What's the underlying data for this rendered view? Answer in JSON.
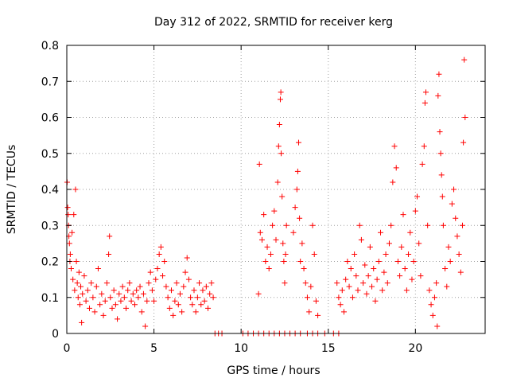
{
  "chart_data": {
    "type": "scatter",
    "title": "Day 312 of 2022, SRMTID for receiver kerg",
    "xlabel": "GPS time / hours",
    "ylabel": "SRMTID / TECUs",
    "xlim": [
      0,
      24
    ],
    "ylim": [
      0,
      0.8
    ],
    "x_ticks": [
      0,
      5,
      10,
      15,
      20
    ],
    "y_ticks": [
      0,
      0.1,
      0.2,
      0.3,
      0.4,
      0.5,
      0.6,
      0.7,
      0.8
    ],
    "x_tick_labels": [
      "0",
      "5",
      "10",
      "15",
      "20"
    ],
    "y_tick_labels": [
      "0",
      "0.1",
      "0.2",
      "0.3",
      "0.4",
      "0.5",
      "0.6",
      "0.7",
      "0.8"
    ],
    "grid": true,
    "marker": "plus",
    "series": [
      {
        "name": "SRMTID",
        "color": "#ff0000",
        "points": [
          [
            0.02,
            0.42
          ],
          [
            0.05,
            0.35
          ],
          [
            0.08,
            0.33
          ],
          [
            0.1,
            0.3
          ],
          [
            0.12,
            0.27
          ],
          [
            0.15,
            0.25
          ],
          [
            0.18,
            0.2
          ],
          [
            0.2,
            0.22
          ],
          [
            0.25,
            0.18
          ],
          [
            0.3,
            0.28
          ],
          [
            0.35,
            0.15
          ],
          [
            0.4,
            0.33
          ],
          [
            0.45,
            0.12
          ],
          [
            0.5,
            0.4
          ],
          [
            0.55,
            0.2
          ],
          [
            0.6,
            0.14
          ],
          [
            0.65,
            0.1
          ],
          [
            0.7,
            0.17
          ],
          [
            0.75,
            0.08
          ],
          [
            0.8,
            0.13
          ],
          [
            0.85,
            0.03
          ],
          [
            0.9,
            0.11
          ],
          [
            1.0,
            0.16
          ],
          [
            1.1,
            0.09
          ],
          [
            1.2,
            0.12
          ],
          [
            1.3,
            0.07
          ],
          [
            1.4,
            0.14
          ],
          [
            1.5,
            0.1
          ],
          [
            1.6,
            0.06
          ],
          [
            1.7,
            0.13
          ],
          [
            1.8,
            0.18
          ],
          [
            1.9,
            0.08
          ],
          [
            2.0,
            0.11
          ],
          [
            2.1,
            0.05
          ],
          [
            2.2,
            0.09
          ],
          [
            2.3,
            0.14
          ],
          [
            2.4,
            0.22
          ],
          [
            2.45,
            0.27
          ],
          [
            2.5,
            0.1
          ],
          [
            2.6,
            0.07
          ],
          [
            2.7,
            0.12
          ],
          [
            2.8,
            0.08
          ],
          [
            2.9,
            0.04
          ],
          [
            3.0,
            0.11
          ],
          [
            3.1,
            0.09
          ],
          [
            3.2,
            0.13
          ],
          [
            3.3,
            0.1
          ],
          [
            3.4,
            0.07
          ],
          [
            3.5,
            0.12
          ],
          [
            3.6,
            0.14
          ],
          [
            3.7,
            0.09
          ],
          [
            3.8,
            0.11
          ],
          [
            3.9,
            0.08
          ],
          [
            4.0,
            0.12
          ],
          [
            4.1,
            0.1
          ],
          [
            4.2,
            0.13
          ],
          [
            4.3,
            0.06
          ],
          [
            4.4,
            0.11
          ],
          [
            4.5,
            0.02
          ],
          [
            4.6,
            0.09
          ],
          [
            4.7,
            0.14
          ],
          [
            4.8,
            0.17
          ],
          [
            4.9,
            0.12
          ],
          [
            5.0,
            0.09
          ],
          [
            5.1,
            0.15
          ],
          [
            5.2,
            0.18
          ],
          [
            5.3,
            0.22
          ],
          [
            5.4,
            0.24
          ],
          [
            5.5,
            0.16
          ],
          [
            5.6,
            0.2
          ],
          [
            5.7,
            0.13
          ],
          [
            5.8,
            0.1
          ],
          [
            5.9,
            0.07
          ],
          [
            6.0,
            0.12
          ],
          [
            6.1,
            0.05
          ],
          [
            6.2,
            0.09
          ],
          [
            6.3,
            0.14
          ],
          [
            6.4,
            0.08
          ],
          [
            6.5,
            0.11
          ],
          [
            6.6,
            0.06
          ],
          [
            6.7,
            0.13
          ],
          [
            6.8,
            0.17
          ],
          [
            6.9,
            0.21
          ],
          [
            7.0,
            0.15
          ],
          [
            7.1,
            0.1
          ],
          [
            7.2,
            0.08
          ],
          [
            7.3,
            0.12
          ],
          [
            7.4,
            0.06
          ],
          [
            7.5,
            0.1
          ],
          [
            7.6,
            0.14
          ],
          [
            7.7,
            0.08
          ],
          [
            7.8,
            0.12
          ],
          [
            7.9,
            0.09
          ],
          [
            8.0,
            0.13
          ],
          [
            8.1,
            0.07
          ],
          [
            8.2,
            0.11
          ],
          [
            8.3,
            0.14
          ],
          [
            8.4,
            0.1
          ],
          [
            8.5,
            0.0
          ],
          [
            8.7,
            0.0
          ],
          [
            8.9,
            0.0
          ],
          [
            10.1,
            0.0
          ],
          [
            10.4,
            0.0
          ],
          [
            10.7,
            0.0
          ],
          [
            11.0,
            0.0
          ],
          [
            11.3,
            0.0
          ],
          [
            11.6,
            0.0
          ],
          [
            11.9,
            0.0
          ],
          [
            12.2,
            0.0
          ],
          [
            12.5,
            0.0
          ],
          [
            12.8,
            0.0
          ],
          [
            13.1,
            0.0
          ],
          [
            13.4,
            0.0
          ],
          [
            13.8,
            0.0
          ],
          [
            14.1,
            0.0
          ],
          [
            14.4,
            0.0
          ],
          [
            14.8,
            0.0
          ],
          [
            15.3,
            0.0
          ],
          [
            15.6,
            0.0
          ],
          [
            11.0,
            0.11
          ],
          [
            11.05,
            0.47
          ],
          [
            11.1,
            0.28
          ],
          [
            11.2,
            0.26
          ],
          [
            11.3,
            0.33
          ],
          [
            11.4,
            0.2
          ],
          [
            11.5,
            0.24
          ],
          [
            11.6,
            0.18
          ],
          [
            11.7,
            0.22
          ],
          [
            11.8,
            0.3
          ],
          [
            11.9,
            0.34
          ],
          [
            12.0,
            0.26
          ],
          [
            12.1,
            0.42
          ],
          [
            12.15,
            0.52
          ],
          [
            12.2,
            0.58
          ],
          [
            12.25,
            0.65
          ],
          [
            12.28,
            0.67
          ],
          [
            12.3,
            0.5
          ],
          [
            12.35,
            0.38
          ],
          [
            12.4,
            0.25
          ],
          [
            12.45,
            0.2
          ],
          [
            12.5,
            0.14
          ],
          [
            12.55,
            0.22
          ],
          [
            12.6,
            0.3
          ],
          [
            13.0,
            0.28
          ],
          [
            13.1,
            0.35
          ],
          [
            13.2,
            0.4
          ],
          [
            13.25,
            0.45
          ],
          [
            13.3,
            0.53
          ],
          [
            13.35,
            0.32
          ],
          [
            13.4,
            0.2
          ],
          [
            13.5,
            0.25
          ],
          [
            13.6,
            0.18
          ],
          [
            13.7,
            0.14
          ],
          [
            13.8,
            0.1
          ],
          [
            13.9,
            0.06
          ],
          [
            14.0,
            0.13
          ],
          [
            14.1,
            0.3
          ],
          [
            14.2,
            0.22
          ],
          [
            14.3,
            0.09
          ],
          [
            14.4,
            0.05
          ],
          [
            15.5,
            0.14
          ],
          [
            15.6,
            0.1
          ],
          [
            15.7,
            0.08
          ],
          [
            15.8,
            0.12
          ],
          [
            15.9,
            0.06
          ],
          [
            16.0,
            0.15
          ],
          [
            16.1,
            0.2
          ],
          [
            16.2,
            0.13
          ],
          [
            16.3,
            0.18
          ],
          [
            16.4,
            0.1
          ],
          [
            16.5,
            0.22
          ],
          [
            16.6,
            0.16
          ],
          [
            16.7,
            0.12
          ],
          [
            16.8,
            0.3
          ],
          [
            16.9,
            0.26
          ],
          [
            17.0,
            0.14
          ],
          [
            17.1,
            0.19
          ],
          [
            17.2,
            0.11
          ],
          [
            17.3,
            0.16
          ],
          [
            17.4,
            0.24
          ],
          [
            17.5,
            0.13
          ],
          [
            17.6,
            0.18
          ],
          [
            17.7,
            0.09
          ],
          [
            17.8,
            0.15
          ],
          [
            17.9,
            0.2
          ],
          [
            18.0,
            0.28
          ],
          [
            18.1,
            0.12
          ],
          [
            18.2,
            0.17
          ],
          [
            18.3,
            0.22
          ],
          [
            18.4,
            0.14
          ],
          [
            18.5,
            0.25
          ],
          [
            18.6,
            0.3
          ],
          [
            18.7,
            0.42
          ],
          [
            18.8,
            0.52
          ],
          [
            18.9,
            0.46
          ],
          [
            19.0,
            0.2
          ],
          [
            19.1,
            0.16
          ],
          [
            19.2,
            0.24
          ],
          [
            19.3,
            0.33
          ],
          [
            19.4,
            0.18
          ],
          [
            19.5,
            0.12
          ],
          [
            19.6,
            0.22
          ],
          [
            19.7,
            0.28
          ],
          [
            19.8,
            0.15
          ],
          [
            19.9,
            0.2
          ],
          [
            20.0,
            0.34
          ],
          [
            20.1,
            0.38
          ],
          [
            20.2,
            0.25
          ],
          [
            20.3,
            0.16
          ],
          [
            20.4,
            0.47
          ],
          [
            20.5,
            0.52
          ],
          [
            20.55,
            0.64
          ],
          [
            20.6,
            0.67
          ],
          [
            20.7,
            0.3
          ],
          [
            20.8,
            0.12
          ],
          [
            20.9,
            0.08
          ],
          [
            21.0,
            0.05
          ],
          [
            21.1,
            0.1
          ],
          [
            21.2,
            0.14
          ],
          [
            21.25,
            0.02
          ],
          [
            21.3,
            0.66
          ],
          [
            21.35,
            0.72
          ],
          [
            21.4,
            0.56
          ],
          [
            21.45,
            0.5
          ],
          [
            21.5,
            0.44
          ],
          [
            21.55,
            0.38
          ],
          [
            21.6,
            0.3
          ],
          [
            21.7,
            0.18
          ],
          [
            21.8,
            0.13
          ],
          [
            21.9,
            0.24
          ],
          [
            22.0,
            0.2
          ],
          [
            22.1,
            0.36
          ],
          [
            22.2,
            0.4
          ],
          [
            22.3,
            0.32
          ],
          [
            22.4,
            0.27
          ],
          [
            22.5,
            0.22
          ],
          [
            22.6,
            0.17
          ],
          [
            22.7,
            0.3
          ],
          [
            22.75,
            0.53
          ],
          [
            22.8,
            0.76
          ],
          [
            22.85,
            0.6
          ]
        ]
      }
    ]
  }
}
